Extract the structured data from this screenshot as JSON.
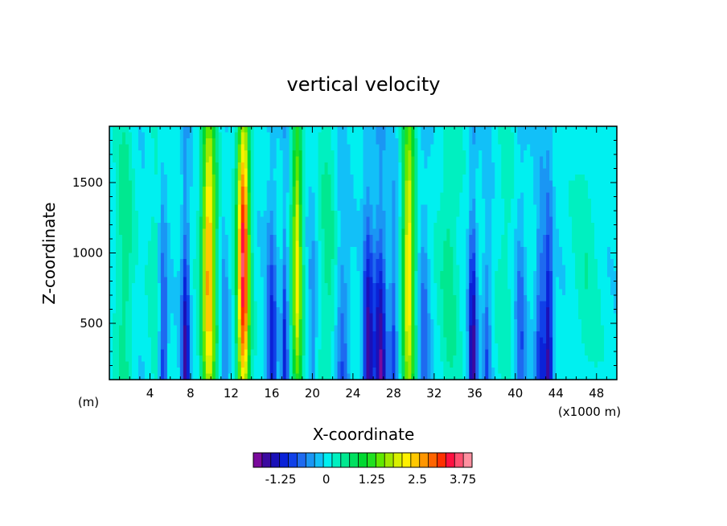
{
  "chart_data": {
    "type": "heatmap",
    "title": "vertical velocity",
    "xlabel": "X-coordinate",
    "ylabel": "Z-coordinate",
    "x_unit_left": "(m)",
    "x_unit_right": "(x1000 m)",
    "xlim": [
      0,
      50
    ],
    "ylim": [
      100,
      1900
    ],
    "xticks": [
      4,
      8,
      12,
      16,
      20,
      24,
      28,
      32,
      36,
      40,
      44,
      48
    ],
    "yticks": [
      500,
      1000,
      1500
    ],
    "colorbar": {
      "min": -2.0,
      "max": 4.0,
      "step": 0.25,
      "tick_values": [
        -1.25,
        0,
        1.25,
        2.5,
        3.75
      ],
      "tick_labels": [
        "-1.25",
        "0",
        "1.25",
        "2.5",
        "3.75"
      ],
      "colors": [
        "#7a0a9c",
        "#3b0aa0",
        "#1a10b8",
        "#0a22d8",
        "#1040e8",
        "#1e6af0",
        "#1a96f4",
        "#12c0f8",
        "#00f0f0",
        "#00f0c0",
        "#00e890",
        "#00e060",
        "#00d830",
        "#20e020",
        "#60e800",
        "#a0e800",
        "#d8f000",
        "#fff000",
        "#ffc800",
        "#ff9600",
        "#ff6400",
        "#ff3000",
        "#ff1040",
        "#ff5070",
        "#ff90a0"
      ]
    },
    "field_description": "vertical velocity (m/s) contoured over X (km) and Z (m); columns listed as [x_km, peak_w, half_width_km]",
    "background_value": 0.1,
    "updraft_columns": [
      [
        1.5,
        0.6,
        0.8
      ],
      [
        4.5,
        0.3,
        0.6
      ],
      [
        9.8,
        2.8,
        0.7
      ],
      [
        13.2,
        3.6,
        0.6
      ],
      [
        18.5,
        2.2,
        0.5
      ],
      [
        21.5,
        0.5,
        0.8
      ],
      [
        29.5,
        2.4,
        0.6
      ],
      [
        33.5,
        0.5,
        1.0
      ],
      [
        39.0,
        0.3,
        0.8
      ],
      [
        47.0,
        0.3,
        1.2
      ]
    ],
    "downdraft_columns": [
      [
        5.3,
        -1.1,
        0.4
      ],
      [
        7.5,
        -1.7,
        0.4
      ],
      [
        11.3,
        -0.6,
        0.4
      ],
      [
        16.0,
        -1.3,
        0.5
      ],
      [
        17.3,
        -1.2,
        0.3
      ],
      [
        20.0,
        -0.6,
        0.4
      ],
      [
        23.0,
        -0.8,
        0.6
      ],
      [
        25.5,
        -1.8,
        0.5
      ],
      [
        26.7,
        -1.8,
        0.6
      ],
      [
        28.0,
        -1.0,
        0.4
      ],
      [
        31.0,
        -0.8,
        0.5
      ],
      [
        35.8,
        -1.8,
        0.4
      ],
      [
        37.2,
        -0.8,
        0.4
      ],
      [
        40.5,
        -0.9,
        0.5
      ],
      [
        42.5,
        -1.2,
        0.5
      ],
      [
        43.3,
        -1.7,
        0.4
      ]
    ]
  }
}
